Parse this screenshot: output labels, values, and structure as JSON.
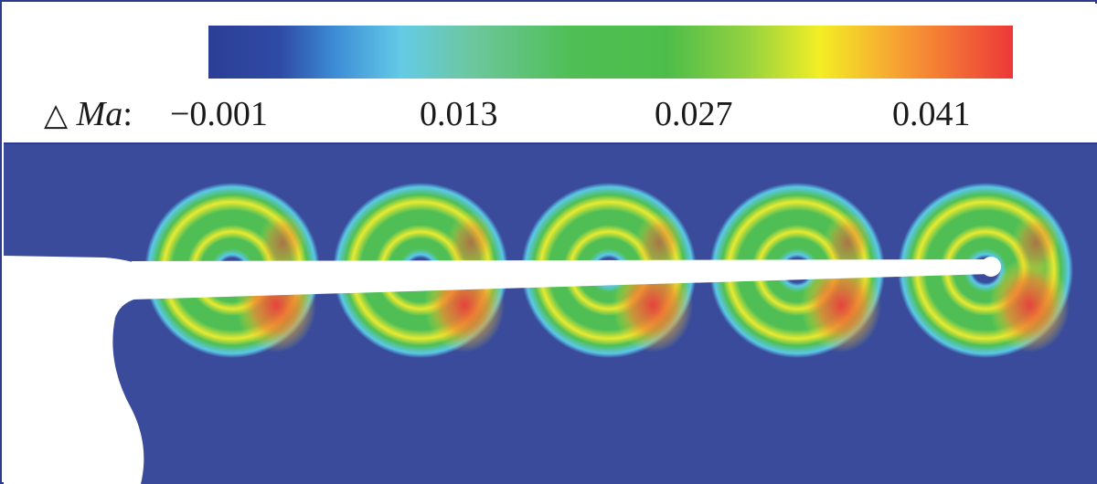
{
  "legend": {
    "symbol": "△",
    "variable": "Ma",
    "separator": ":",
    "ticks": [
      "−0.001",
      "0.013",
      "0.027",
      "0.041"
    ],
    "colormap": [
      "#2c3e96",
      "#2f5db8",
      "#3aa6e0",
      "#5cc39a",
      "#4fbd4f",
      "#5cc14c",
      "#a8d840",
      "#f5ec20",
      "#f7a030",
      "#ee3c3c"
    ]
  },
  "field": {
    "background_color": "#3a4b9b",
    "ring_count": 5
  }
}
